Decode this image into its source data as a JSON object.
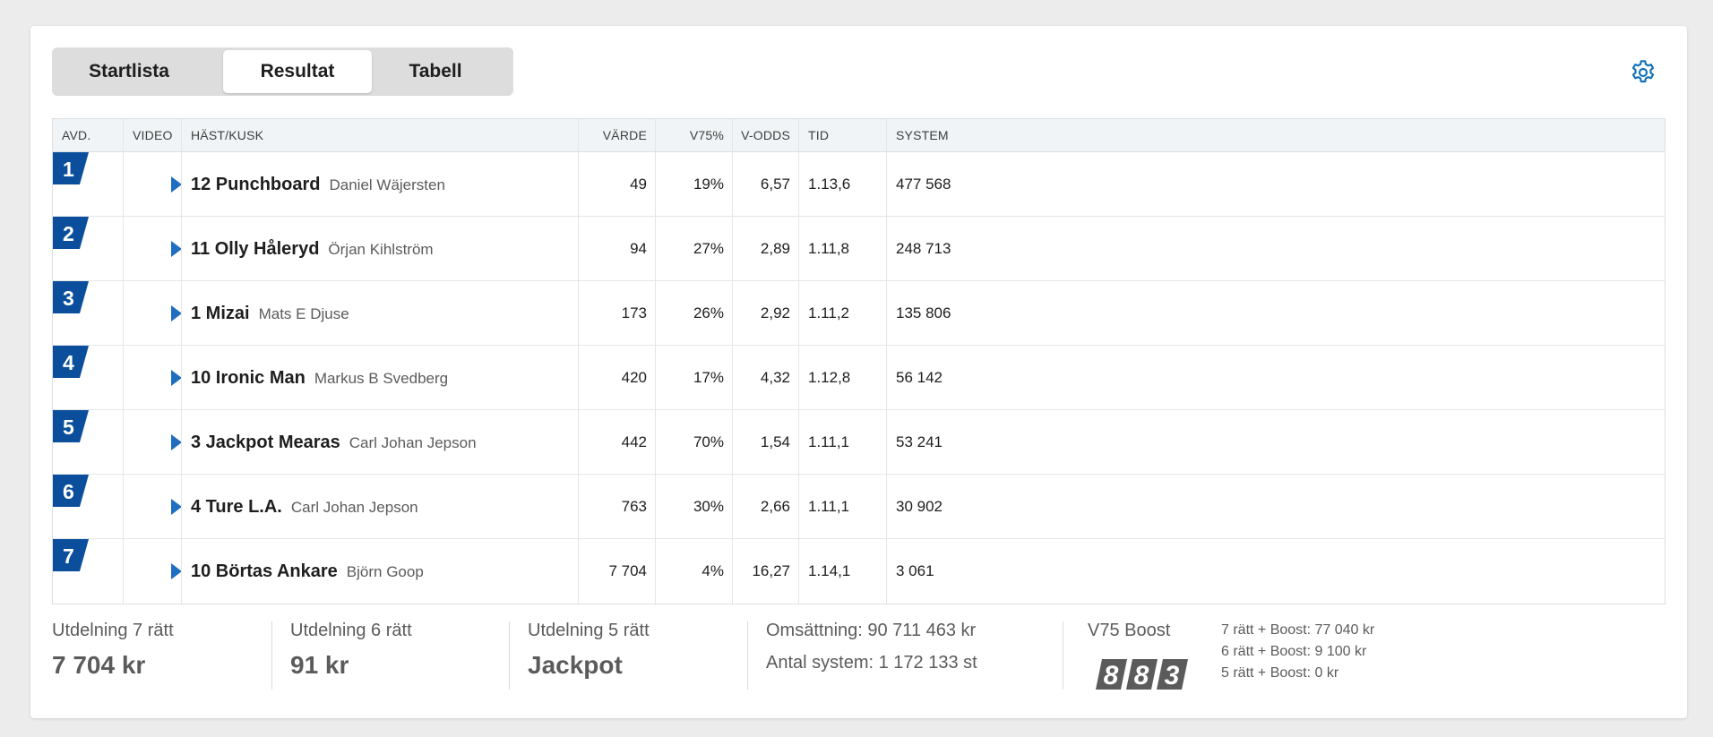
{
  "tabs": [
    {
      "label": "Startlista",
      "active": false
    },
    {
      "label": "Resultat",
      "active": true
    },
    {
      "label": "Tabell",
      "active": false
    }
  ],
  "settings_icon": "gear-icon",
  "table": {
    "headers": {
      "avd": "AVD.",
      "video": "VIDEO",
      "horse": "HÄST/KUSK",
      "value": "VÄRDE",
      "pct": "V75%",
      "odds": "V-ODDS",
      "time": "TID",
      "system": "SYSTEM"
    },
    "rows": [
      {
        "avd": "1",
        "horse": "12 Punchboard",
        "driver": "Daniel Wäjersten",
        "value": "49",
        "pct": "19%",
        "odds": "6,57",
        "time": "1.13,6",
        "system": "477 568"
      },
      {
        "avd": "2",
        "horse": "11 Olly Håleryd",
        "driver": "Örjan Kihlström",
        "value": "94",
        "pct": "27%",
        "odds": "2,89",
        "time": "1.11,8",
        "system": "248 713"
      },
      {
        "avd": "3",
        "horse": "1 Mizai",
        "driver": "Mats E Djuse",
        "value": "173",
        "pct": "26%",
        "odds": "2,92",
        "time": "1.11,2",
        "system": "135 806"
      },
      {
        "avd": "4",
        "horse": "10 Ironic Man",
        "driver": "Markus B Svedberg",
        "value": "420",
        "pct": "17%",
        "odds": "4,32",
        "time": "1.12,8",
        "system": "56 142"
      },
      {
        "avd": "5",
        "horse": "3 Jackpot Mearas",
        "driver": "Carl Johan Jepson",
        "value": "442",
        "pct": "70%",
        "odds": "1,54",
        "time": "1.11,1",
        "system": "53 241"
      },
      {
        "avd": "6",
        "horse": "4 Ture L.A.",
        "driver": "Carl Johan Jepson",
        "value": "763",
        "pct": "30%",
        "odds": "2,66",
        "time": "1.11,1",
        "system": "30 902"
      },
      {
        "avd": "7",
        "horse": "10 Börtas Ankare",
        "driver": "Björn Goop",
        "value": "7 704",
        "pct": "4%",
        "odds": "16,27",
        "time": "1.14,1",
        "system": "3 061"
      }
    ]
  },
  "footer": {
    "payouts": [
      {
        "label": "Utdelning 7 rätt",
        "value": "7 704 kr"
      },
      {
        "label": "Utdelning 6 rätt",
        "value": "91 kr"
      },
      {
        "label": "Utdelning 5 rätt",
        "value": "Jackpot"
      }
    ],
    "turnover": "Omsättning: 90 711 463 kr",
    "systems": "Antal system: 1 172 133 st",
    "boost": {
      "title": "V75 Boost",
      "digits": [
        "8",
        "8",
        "3"
      ],
      "lines": [
        "7 rätt + Boost: 77 040 kr",
        "6 rätt + Boost: 9 100 kr",
        "5 rätt + Boost: 0 kr"
      ]
    }
  },
  "colors": {
    "accent_blue": "#0b4f9c",
    "play_blue": "#1f6ebf",
    "gear_blue": "#1170b8",
    "boost_grey": "#5b5b5b"
  }
}
